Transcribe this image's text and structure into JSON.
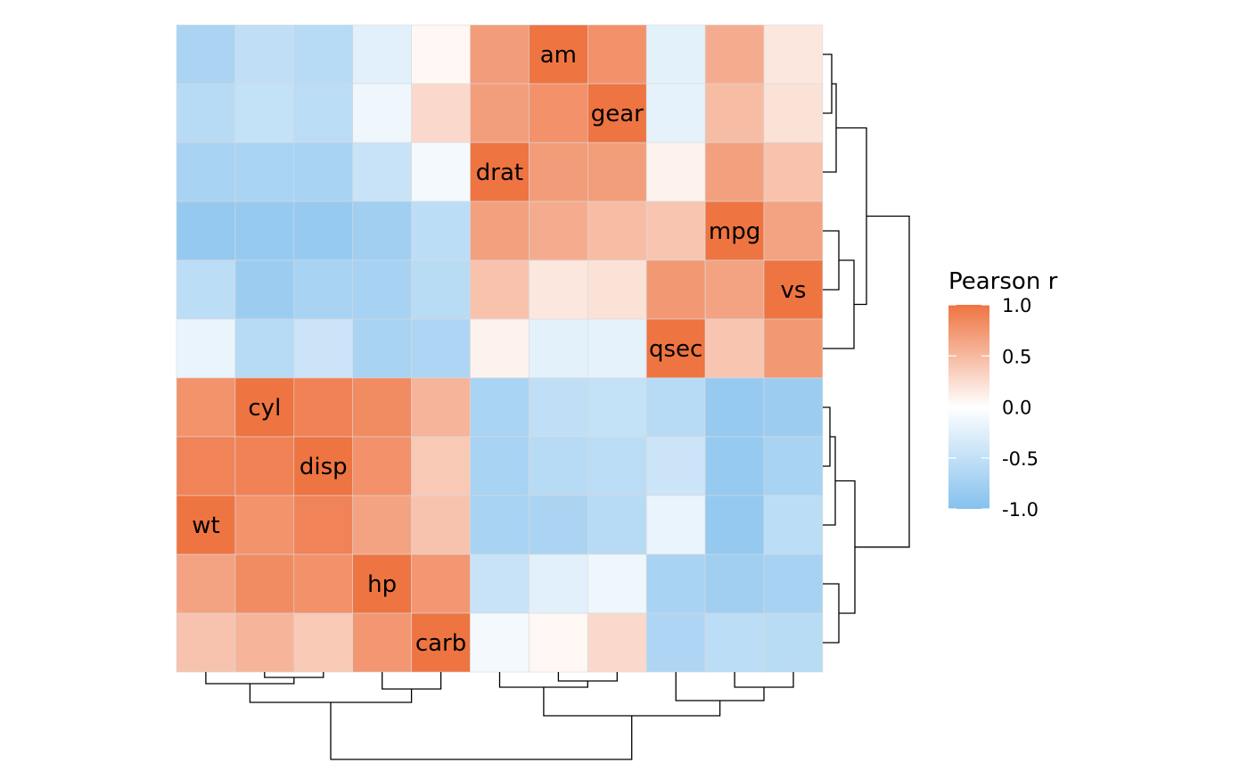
{
  "chart_data": {
    "type": "heatmap",
    "title": "",
    "xlabel": "",
    "ylabel": "",
    "labels": [
      "wt",
      "cyl",
      "disp",
      "hp",
      "carb",
      "qsec",
      "vs",
      "mpg",
      "drat",
      "am",
      "gear"
    ],
    "column_order": [
      "wt",
      "cyl",
      "disp",
      "hp",
      "carb",
      "drat",
      "am",
      "gear",
      "qsec",
      "mpg",
      "vs"
    ],
    "row_order": [
      "am",
      "gear",
      "drat",
      "mpg",
      "vs",
      "qsec",
      "cyl",
      "disp",
      "wt",
      "hp",
      "carb"
    ],
    "matrix": [
      [
        1.0,
        0.78,
        0.89,
        0.66,
        0.43,
        -0.17,
        -0.55,
        -0.87,
        -0.71,
        -0.69,
        -0.58
      ],
      [
        0.78,
        1.0,
        0.9,
        0.83,
        0.53,
        -0.59,
        -0.81,
        -0.85,
        -0.7,
        -0.52,
        -0.49
      ],
      [
        0.89,
        0.9,
        1.0,
        0.79,
        0.39,
        -0.43,
        -0.71,
        -0.85,
        -0.71,
        -0.59,
        -0.56
      ],
      [
        0.66,
        0.83,
        0.79,
        1.0,
        0.75,
        -0.71,
        -0.72,
        -0.78,
        -0.45,
        -0.24,
        -0.13
      ],
      [
        0.43,
        0.53,
        0.39,
        0.75,
        1.0,
        -0.66,
        -0.57,
        -0.55,
        -0.09,
        0.06,
        0.27
      ],
      [
        -0.17,
        -0.59,
        -0.43,
        -0.71,
        -0.66,
        1.0,
        0.74,
        0.42,
        0.09,
        -0.23,
        -0.21
      ],
      [
        -0.55,
        -0.81,
        -0.71,
        -0.72,
        -0.57,
        0.74,
        1.0,
        0.66,
        0.44,
        0.17,
        0.21
      ],
      [
        -0.87,
        -0.85,
        -0.85,
        -0.78,
        -0.55,
        0.42,
        0.66,
        1.0,
        0.68,
        0.6,
        0.48
      ],
      [
        -0.71,
        -0.7,
        -0.71,
        -0.45,
        -0.09,
        0.09,
        0.44,
        0.68,
        1.0,
        0.71,
        0.7
      ],
      [
        -0.69,
        -0.52,
        -0.59,
        -0.24,
        0.06,
        -0.23,
        0.17,
        0.6,
        0.71,
        1.0,
        0.79
      ],
      [
        -0.58,
        -0.49,
        -0.56,
        -0.13,
        0.27,
        -0.21,
        0.21,
        0.48,
        0.7,
        0.79,
        1.0
      ]
    ],
    "color_scale": {
      "low": "#85C1EE",
      "mid": "#FFFFFF",
      "high": "#EE7442",
      "limits": [
        -1.0,
        1.0
      ]
    },
    "legend": {
      "title": "Pearson r",
      "position": "right",
      "ticks": [
        {
          "value": 1.0,
          "label": "1.0"
        },
        {
          "value": 0.5,
          "label": "0.5"
        },
        {
          "value": 0.0,
          "label": "0.0"
        },
        {
          "value": -0.5,
          "label": "-0.5"
        },
        {
          "value": -1.0,
          "label": "-1.0"
        }
      ]
    },
    "dendrogram_columns": {
      "merge_order": [
        [
          "cyl",
          "disp"
        ],
        [
          "wt",
          "cyl+disp"
        ],
        [
          "hp",
          "carb"
        ],
        [
          "wt+cyl+disp",
          "hp+carb"
        ],
        [
          "am",
          "gear"
        ],
        [
          "drat",
          "am+gear"
        ],
        [
          "mpg",
          "vs"
        ],
        [
          "qsec",
          "mpg+vs"
        ],
        [
          "drat+am+gear",
          "qsec+mpg+vs"
        ],
        [
          "all_left",
          "all_right"
        ]
      ]
    },
    "dendrogram_rows": {
      "merge_order": [
        [
          "am",
          "gear"
        ],
        [
          "am+gear",
          "drat"
        ],
        [
          "mpg",
          "vs"
        ],
        [
          "mpg+vs",
          "qsec"
        ],
        [
          "top3",
          "mid3"
        ],
        [
          "cyl",
          "disp"
        ],
        [
          "cyl+disp",
          "wt"
        ],
        [
          "hp",
          "carb"
        ],
        [
          "cyl+disp+wt",
          "hp+carb"
        ],
        [
          "top6",
          "bottom5"
        ]
      ]
    },
    "grid": false
  }
}
